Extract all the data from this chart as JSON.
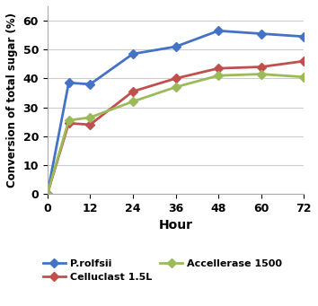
{
  "hours": [
    0,
    6,
    12,
    24,
    36,
    48,
    60,
    72
  ],
  "p_rolfsii": [
    0,
    38.5,
    38.0,
    48.5,
    51.0,
    56.5,
    55.5,
    54.5
  ],
  "celluclast": [
    0,
    24.5,
    24.0,
    35.5,
    40.0,
    43.5,
    44.0,
    46.0
  ],
  "accellerase": [
    0,
    25.5,
    26.5,
    32.0,
    37.0,
    41.0,
    41.5,
    40.5
  ],
  "p_rolfsii_color": "#4472C4",
  "celluclast_color": "#C0504D",
  "accellerase_color": "#9BBB59",
  "p_rolfsii_label": "P.rolfsii",
  "celluclast_label": "Celluclast 1.5L",
  "accellerase_label": "Accellerase 1500",
  "xlabel": "Hour",
  "ylabel": "Conversion of total sugar (%)",
  "xlim": [
    0,
    72
  ],
  "ylim": [
    0,
    65
  ],
  "yticks": [
    0,
    10,
    20,
    30,
    40,
    50,
    60
  ],
  "xticks": [
    0,
    12,
    24,
    36,
    48,
    60,
    72
  ],
  "marker": "D",
  "linewidth": 2.0,
  "markersize": 5,
  "figwidth": 3.54,
  "figheight": 3.41,
  "dpi": 100
}
